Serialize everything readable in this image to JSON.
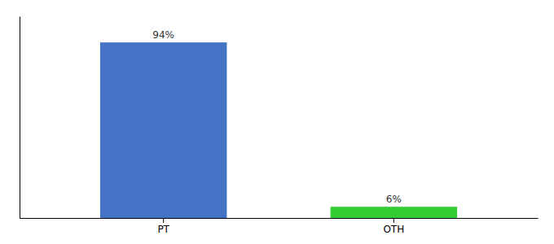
{
  "chart_data": {
    "type": "bar",
    "categories": [
      "PT",
      "OTH"
    ],
    "values": [
      94,
      6
    ],
    "value_labels": [
      "94%",
      "6%"
    ],
    "colors": [
      "#4472c4",
      "#33cc33"
    ],
    "ylim": [
      0,
      108
    ],
    "data_labels": true,
    "tick_labels": "x"
  }
}
